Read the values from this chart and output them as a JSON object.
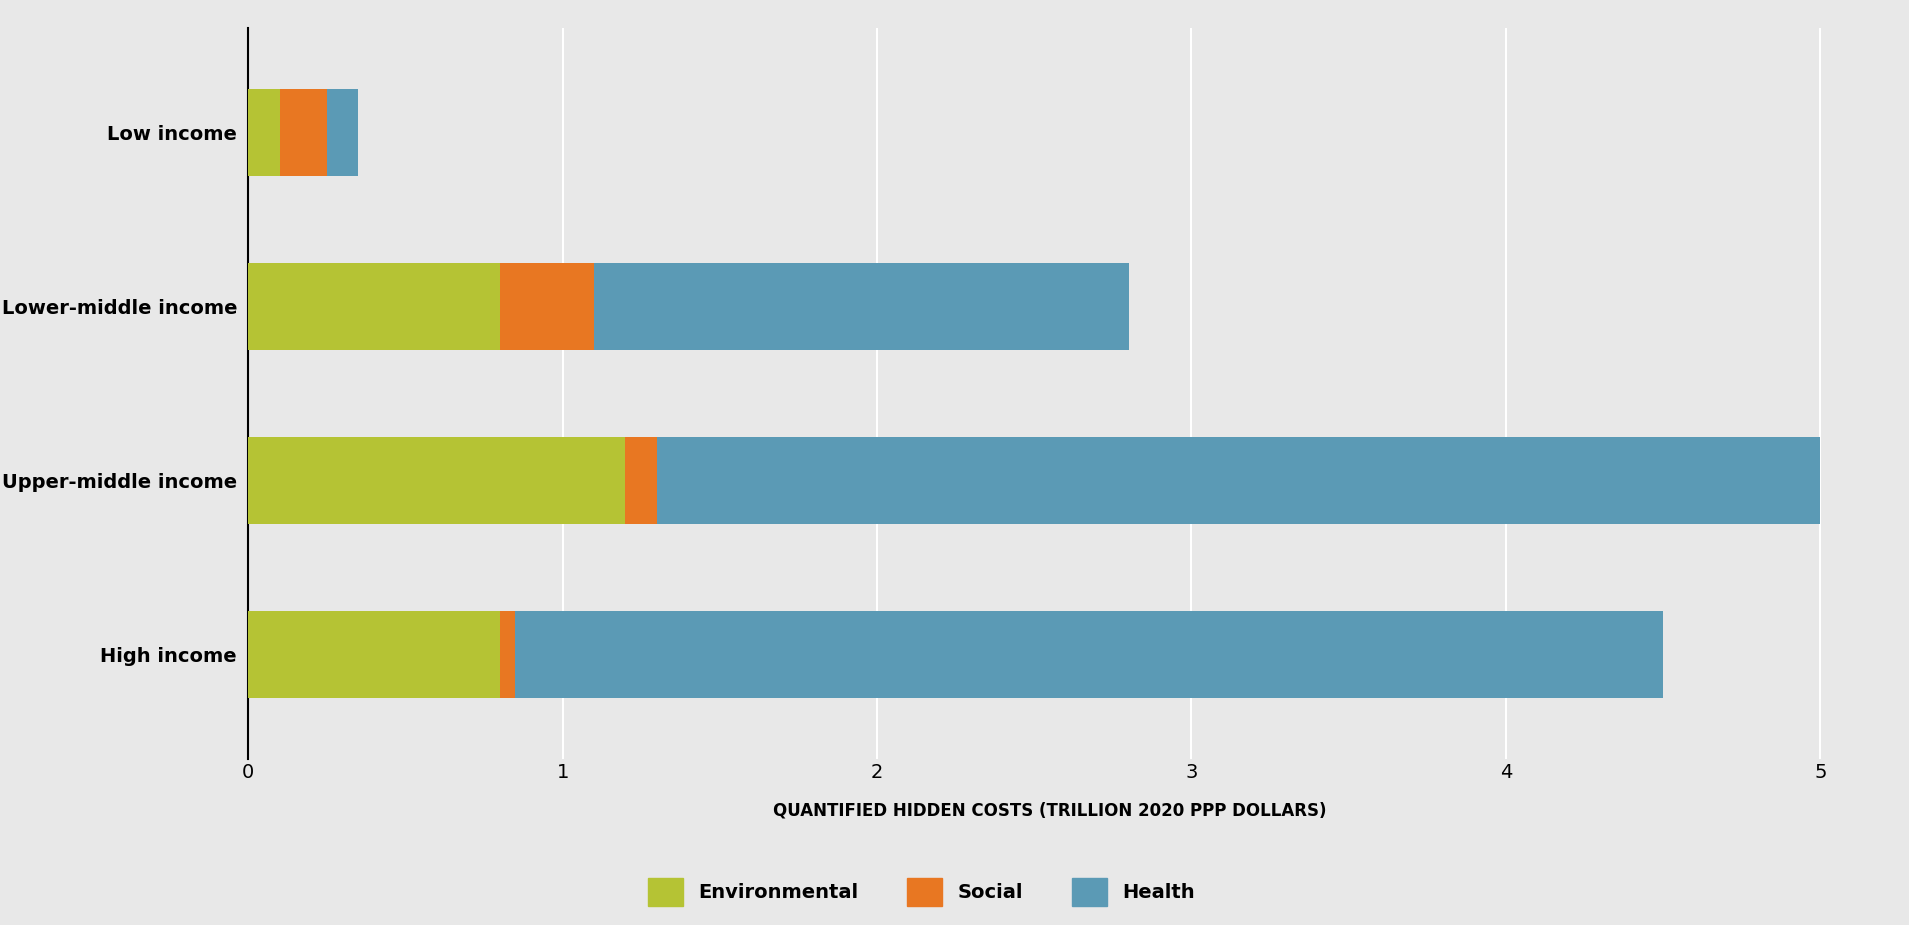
{
  "categories": [
    "High income",
    "Upper-middle income",
    "Lower-middle income",
    "Low income"
  ],
  "environmental": [
    0.8,
    1.2,
    0.8,
    0.1
  ],
  "social": [
    0.05,
    0.1,
    0.3,
    0.15
  ],
  "health": [
    3.65,
    3.7,
    1.7,
    0.1
  ],
  "colors": {
    "environmental": "#b5c334",
    "social": "#e87722",
    "health": "#5b9ab5"
  },
  "legend_labels": [
    "Environmental",
    "Social",
    "Health"
  ],
  "xlabel": "QUANTIFIED HIDDEN COSTS (TRILLION 2020 PPP DOLLARS)",
  "xlim": [
    0,
    5.1
  ],
  "xticks": [
    0,
    1,
    2,
    3,
    4,
    5
  ],
  "background_color": "#e8e8e8",
  "bar_height": 0.5,
  "xlabel_fontsize": 12,
  "tick_fontsize": 14,
  "ylabel_fontsize": 14,
  "legend_fontsize": 14,
  "grid_color": "#ffffff",
  "spine_color": "#000000"
}
